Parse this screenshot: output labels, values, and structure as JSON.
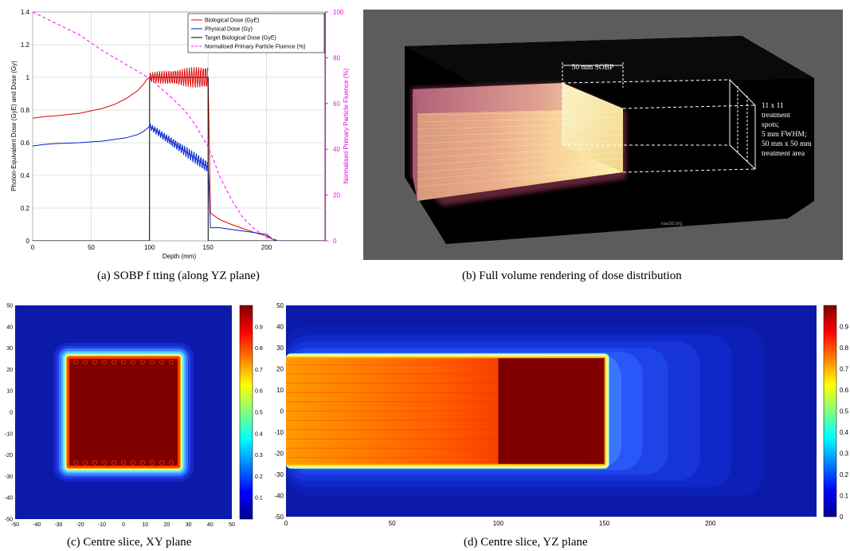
{
  "captions": {
    "a": "(a)  SOBP f tting (along YZ plane)",
    "b": "(b)  Full volume rendering of dose distribution",
    "c": "(c)  Centre slice, XY plane",
    "d": "(d)  Centre slice, YZ plane"
  },
  "colors": {
    "biological": "#e00000",
    "physical": "#0020d0",
    "target": "#000000",
    "fluence": "#ff00ff",
    "heat_background": "#00008f",
    "heat_core": "#800000"
  },
  "volume_render": {
    "sobp_label": "50 mm SOBP",
    "annotation_lines": [
      "11 x 11",
      "treatment",
      "spots;",
      "5 mm FWHM;",
      "50 mm x 50 mm",
      "treatment area"
    ],
    "watermark": "vaa3d.org"
  },
  "colorbar_ticks_c": [
    "0.9",
    "0.8",
    "0.7",
    "0.6",
    "0.5",
    "0.4",
    "0.3",
    "0.2",
    "0.1"
  ],
  "colorbar_ticks_d": [
    "0.9",
    "0.8",
    "0.7",
    "0.6",
    "0.5",
    "0.4",
    "0.3",
    "0.2",
    "0.1",
    "0"
  ],
  "chart_data": [
    {
      "type": "line",
      "id": "a",
      "xlabel": "Depth (mm)",
      "ylabel": "Photon-Equivalent Dose (GyE) and Dose (Gy)",
      "y2label": "Normalised Primary Particle Fluence (%)",
      "xlim": [
        0,
        250
      ],
      "ylim": [
        0,
        1.4
      ],
      "y2lim": [
        0,
        100
      ],
      "xticks": [
        0,
        50,
        100,
        150,
        200
      ],
      "yticks": [
        0,
        0.2,
        0.4,
        0.6,
        0.8,
        1,
        1.2,
        1.4
      ],
      "y2ticks": [
        0,
        20,
        40,
        60,
        80,
        100
      ],
      "grid": true,
      "legend_position": "top-right",
      "series": [
        {
          "name": "Biological Dose (GyE)",
          "axis": "left",
          "x": [
            0,
            10,
            20,
            40,
            60,
            70,
            80,
            90,
            95,
            98,
            100,
            150,
            151,
            152,
            160,
            170,
            180,
            190,
            200,
            205,
            210
          ],
          "y": [
            0.75,
            0.76,
            0.765,
            0.78,
            0.81,
            0.835,
            0.87,
            0.92,
            0.96,
            0.99,
            1.0,
            1.0,
            0.6,
            0.17,
            0.13,
            0.1,
            0.075,
            0.05,
            0.03,
            0.01,
            0.0
          ]
        },
        {
          "name": "Physical Dose (Gy)",
          "axis": "left",
          "x": [
            0,
            10,
            20,
            40,
            60,
            80,
            90,
            95,
            100,
            110,
            120,
            130,
            140,
            150,
            151,
            152,
            160,
            180,
            200,
            205,
            210
          ],
          "y": [
            0.58,
            0.59,
            0.595,
            0.6,
            0.61,
            0.63,
            0.65,
            0.67,
            0.7,
            0.65,
            0.6,
            0.55,
            0.5,
            0.45,
            0.3,
            0.08,
            0.08,
            0.06,
            0.04,
            0.01,
            0.0
          ]
        },
        {
          "name": "Target Biological Dose (GyE)",
          "axis": "left",
          "x": [
            0,
            99.9,
            100,
            150,
            150.1,
            250
          ],
          "y": [
            0,
            0,
            1,
            1,
            0,
            0
          ]
        },
        {
          "name": "Normalised Primary Particle Fluence (%)",
          "axis": "right",
          "x": [
            0,
            20,
            40,
            60,
            80,
            100,
            120,
            130,
            140,
            150,
            155,
            160,
            170,
            180,
            190,
            200,
            210
          ],
          "y": [
            100,
            95,
            90,
            83,
            77,
            71,
            62,
            57,
            50,
            41,
            35,
            28,
            18,
            10,
            5,
            1.5,
            0
          ]
        }
      ]
    },
    {
      "type": "heatmap",
      "id": "c",
      "xlim": [
        -50,
        50
      ],
      "ylim": [
        -50,
        50
      ],
      "xticks": [
        -50,
        -40,
        -30,
        -20,
        -10,
        0,
        10,
        20,
        30,
        40,
        50
      ],
      "yticks": [
        50,
        40,
        30,
        20,
        10,
        0,
        -10,
        -20,
        -30,
        -40,
        -50
      ],
      "colorbar_range": [
        0,
        1
      ],
      "core_region": {
        "x": [
          -25,
          25
        ],
        "y": [
          -25,
          25
        ],
        "value": 1.0
      }
    },
    {
      "type": "heatmap",
      "id": "d",
      "xlim": [
        0,
        250
      ],
      "ylim": [
        -50,
        50
      ],
      "xticks": [
        0,
        50,
        100,
        150,
        200
      ],
      "yticks": [
        50,
        40,
        30,
        20,
        10,
        0,
        -10,
        -20,
        -30,
        -40,
        -50
      ],
      "colorbar_range": [
        0,
        1
      ],
      "core_region": {
        "x": [
          0,
          150
        ],
        "y": [
          -25,
          25
        ],
        "value": 1.0
      },
      "sobp_region": {
        "x": [
          100,
          150
        ],
        "y": [
          -25,
          25
        ],
        "value": 1.0
      }
    }
  ]
}
